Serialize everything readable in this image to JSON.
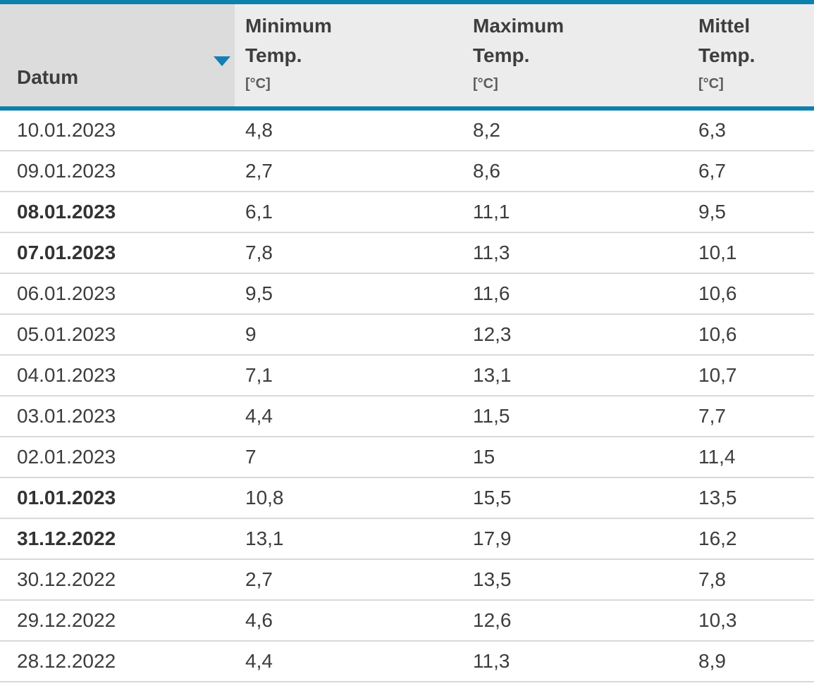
{
  "colors": {
    "accent_blue": "#0d81ad",
    "sort_arrow_blue": "#1280b5",
    "header_bg_sorted_column": "#dcdcdc",
    "header_bg": "#ececec",
    "row_separator": "#d9d9d9",
    "text_primary": "#3d3d3d",
    "text_unit": "#5c5c5c"
  },
  "table": {
    "sort": {
      "column": "Datum",
      "direction": "descending"
    },
    "columns": [
      {
        "label": "Datum",
        "label2": "",
        "unit": ""
      },
      {
        "label": "Minimum",
        "label2": "Temp.",
        "unit": "[°C]"
      },
      {
        "label": "Maximum",
        "label2": "Temp.",
        "unit": "[°C]"
      },
      {
        "label": "Mittel",
        "label2": "Temp.",
        "unit": "[°C]"
      }
    ],
    "rows": [
      {
        "datum": "10.01.2023",
        "min": "4,8",
        "max": "8,2",
        "mittel": "6,3",
        "bold": false
      },
      {
        "datum": "09.01.2023",
        "min": "2,7",
        "max": "8,6",
        "mittel": "6,7",
        "bold": false
      },
      {
        "datum": "08.01.2023",
        "min": "6,1",
        "max": "11,1",
        "mittel": "9,5",
        "bold": true
      },
      {
        "datum": "07.01.2023",
        "min": "7,8",
        "max": "11,3",
        "mittel": "10,1",
        "bold": true
      },
      {
        "datum": "06.01.2023",
        "min": "9,5",
        "max": "11,6",
        "mittel": "10,6",
        "bold": false
      },
      {
        "datum": "05.01.2023",
        "min": "9",
        "max": "12,3",
        "mittel": "10,6",
        "bold": false
      },
      {
        "datum": "04.01.2023",
        "min": "7,1",
        "max": "13,1",
        "mittel": "10,7",
        "bold": false
      },
      {
        "datum": "03.01.2023",
        "min": "4,4",
        "max": "11,5",
        "mittel": "7,7",
        "bold": false
      },
      {
        "datum": "02.01.2023",
        "min": "7",
        "max": "15",
        "mittel": "11,4",
        "bold": false
      },
      {
        "datum": "01.01.2023",
        "min": "10,8",
        "max": "15,5",
        "mittel": "13,5",
        "bold": true
      },
      {
        "datum": "31.12.2022",
        "min": "13,1",
        "max": "17,9",
        "mittel": "16,2",
        "bold": true
      },
      {
        "datum": "30.12.2022",
        "min": "2,7",
        "max": "13,5",
        "mittel": "7,8",
        "bold": false
      },
      {
        "datum": "29.12.2022",
        "min": "4,6",
        "max": "12,6",
        "mittel": "10,3",
        "bold": false
      },
      {
        "datum": "28.12.2022",
        "min": "4,4",
        "max": "11,3",
        "mittel": "8,9",
        "bold": false
      }
    ]
  }
}
